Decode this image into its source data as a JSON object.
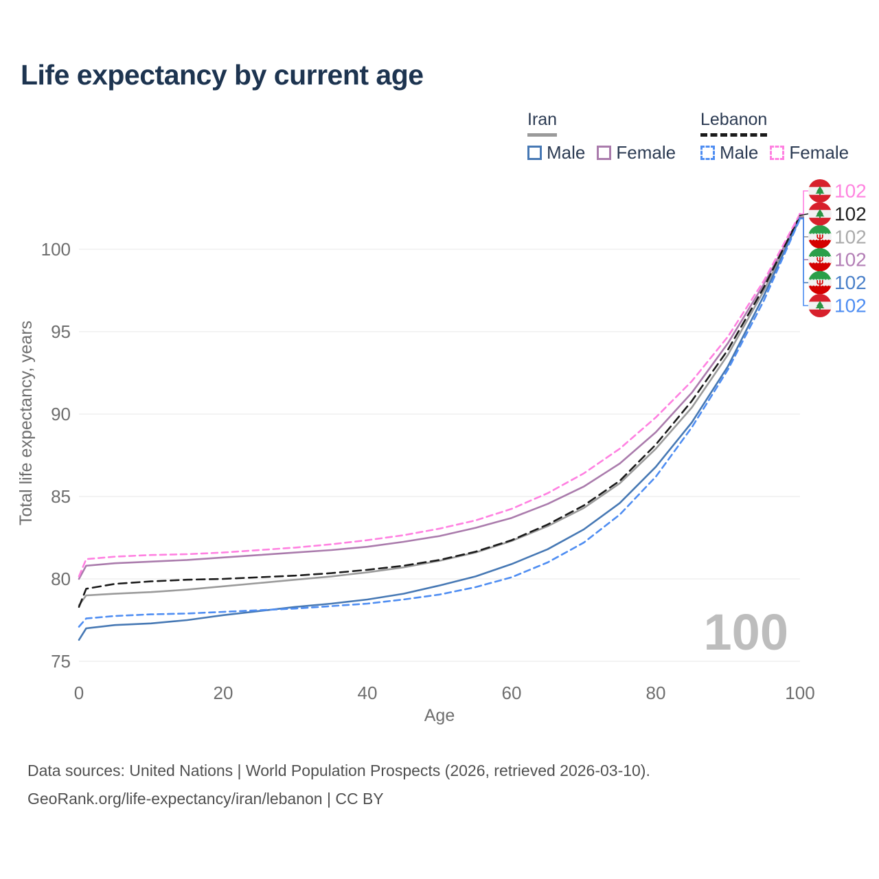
{
  "title": "Life expectancy by current age",
  "legend": {
    "groups": [
      {
        "label": "Iran",
        "style": "solid",
        "items": [
          {
            "label": "Male"
          },
          {
            "label": "Female"
          }
        ]
      },
      {
        "label": "Lebanon",
        "style": "dashed",
        "items": [
          {
            "label": "Male"
          },
          {
            "label": "Female"
          }
        ]
      }
    ]
  },
  "watermark": "100",
  "footer": {
    "line1": "Data sources: United Nations | World Population Prospects (2026, retrieved 2026-03-10).",
    "line2": "GeoRank.org/life-expectancy/iran/lebanon | CC BY"
  },
  "colors": {
    "title_text": "#1d3450",
    "legend_text": "#2b3a52",
    "axis_text": "#6e6e6e",
    "grid": "#ececec",
    "watermark": "#bdbdbd",
    "footer_text": "#4f4f4f"
  },
  "chart_data": {
    "type": "line",
    "title": "Life expectancy by current age",
    "xlabel": "Age",
    "ylabel": "Total life expectancy, years",
    "xlim": [
      0,
      100
    ],
    "ylim": [
      74.5,
      103
    ],
    "xticks": [
      0,
      20,
      40,
      60,
      80,
      100
    ],
    "yticks": [
      75,
      80,
      85,
      90,
      95,
      100
    ],
    "grid": "horizontal",
    "legend_position": "top-right",
    "x": [
      0,
      1,
      5,
      10,
      15,
      20,
      25,
      30,
      35,
      40,
      45,
      50,
      55,
      60,
      65,
      70,
      75,
      80,
      85,
      90,
      95,
      100
    ],
    "series": [
      {
        "name": "Iran",
        "country": "iran",
        "sex": "all",
        "style": "solid",
        "color": "#9a9a9a",
        "label_color": "#ababab",
        "end_label": "102",
        "end_slot": 2,
        "values": [
          78.4,
          79.0,
          79.1,
          79.2,
          79.35,
          79.55,
          79.75,
          79.95,
          80.15,
          80.4,
          80.7,
          81.1,
          81.6,
          82.3,
          83.2,
          84.3,
          85.8,
          87.9,
          90.4,
          93.6,
          97.5,
          102.0
        ]
      },
      {
        "name": "Iran Female",
        "country": "iran",
        "sex": "female",
        "style": "solid",
        "color": "#aa7bac",
        "label_color": "#b37fb6",
        "end_label": "102",
        "end_slot": 3,
        "values": [
          80.0,
          80.8,
          80.95,
          81.05,
          81.15,
          81.3,
          81.45,
          81.6,
          81.75,
          81.95,
          82.25,
          82.6,
          83.1,
          83.7,
          84.55,
          85.6,
          87.0,
          88.9,
          91.3,
          94.3,
          97.9,
          101.95
        ]
      },
      {
        "name": "Iran Male",
        "country": "iran",
        "sex": "male",
        "style": "solid",
        "color": "#4678b4",
        "label_color": "#4a80c9",
        "end_label": "102",
        "end_slot": 4,
        "values": [
          76.3,
          77.0,
          77.2,
          77.3,
          77.5,
          77.8,
          78.05,
          78.3,
          78.5,
          78.75,
          79.1,
          79.6,
          80.15,
          80.9,
          81.8,
          83.0,
          84.6,
          86.8,
          89.5,
          92.9,
          97.2,
          101.9
        ]
      },
      {
        "name": "Lebanon",
        "country": "lebanon",
        "sex": "all",
        "style": "dashed",
        "dash": "12 7",
        "color": "#1a1a1a",
        "label_color": "#1f1f1f",
        "end_label": "102",
        "end_slot": 1,
        "values": [
          78.3,
          79.4,
          79.7,
          79.85,
          79.95,
          80.0,
          80.1,
          80.2,
          80.35,
          80.55,
          80.8,
          81.15,
          81.65,
          82.35,
          83.3,
          84.45,
          85.95,
          88.15,
          90.8,
          93.9,
          97.7,
          102.05
        ]
      },
      {
        "name": "Lebanon Female",
        "country": "lebanon",
        "sex": "female",
        "style": "dashed",
        "dash": "9 6",
        "color": "#ff80e1",
        "label_color": "#ff85e0",
        "end_label": "102",
        "end_slot": 0,
        "values": [
          80.15,
          81.2,
          81.35,
          81.45,
          81.5,
          81.6,
          81.75,
          81.9,
          82.1,
          82.35,
          82.65,
          83.05,
          83.55,
          84.25,
          85.2,
          86.4,
          87.9,
          89.8,
          92.0,
          94.7,
          98.1,
          102.15
        ]
      },
      {
        "name": "Lebanon Male",
        "country": "lebanon",
        "sex": "male",
        "style": "dashed",
        "dash": "9 6",
        "color": "#4e8df2",
        "label_color": "#4e8df2",
        "end_label": "102",
        "end_slot": 5,
        "values": [
          77.1,
          77.6,
          77.75,
          77.85,
          77.9,
          78.0,
          78.1,
          78.2,
          78.35,
          78.5,
          78.75,
          79.05,
          79.5,
          80.1,
          81.0,
          82.2,
          83.9,
          86.2,
          89.2,
          92.7,
          96.9,
          101.85
        ]
      }
    ],
    "flag_colors": {
      "iran": {
        "green": "#2a9f49",
        "white": "#f2f2f2",
        "red": "#d40000",
        "emblem": "#d40000"
      },
      "lebanon": {
        "red": "#d7202c",
        "white": "#f2f2f2",
        "cedar": "#2a9442"
      }
    }
  }
}
